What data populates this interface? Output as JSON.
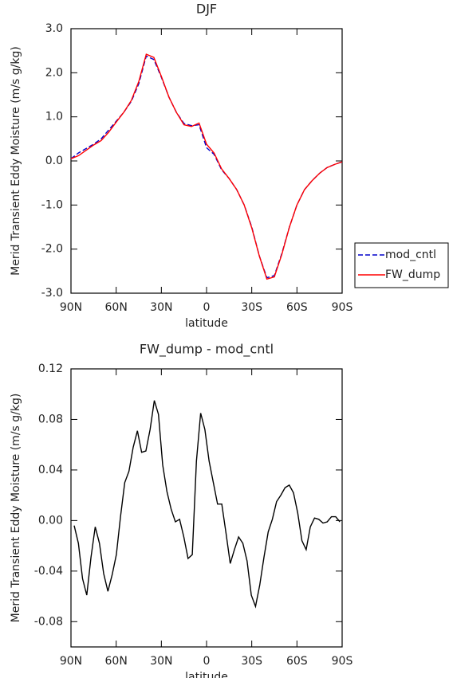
{
  "chart_data": [
    {
      "type": "line",
      "title": "DJF",
      "xlabel": "latitude",
      "ylabel": "Merid Transient Eddy Moisture (m/s g/kg)",
      "x": [
        90,
        85,
        80,
        75,
        70,
        65,
        60,
        55,
        50,
        45,
        40,
        35,
        30,
        25,
        20,
        15,
        10,
        5,
        0,
        -5,
        -10,
        -15,
        -20,
        -25,
        -30,
        -35,
        -40,
        -45,
        -50,
        -55,
        -60,
        -65,
        -70,
        -75,
        -80,
        -85,
        -90
      ],
      "series": [
        {
          "name": "mod_cntl",
          "color": "#0000cc",
          "linestyle": "dashed",
          "values": [
            0.05,
            0.18,
            0.28,
            0.38,
            0.5,
            0.7,
            0.9,
            1.1,
            1.35,
            1.75,
            2.38,
            2.3,
            1.9,
            1.45,
            1.1,
            0.85,
            0.8,
            0.82,
            0.3,
            0.15,
            -0.2,
            -0.4,
            -0.65,
            -1.0,
            -1.5,
            -2.15,
            -2.65,
            -2.6,
            -2.1,
            -1.5,
            -1.0,
            -0.65,
            -0.45,
            -0.28,
            -0.15,
            -0.08,
            -0.02
          ]
        },
        {
          "name": "FW_dump",
          "color": "#ff0000",
          "linestyle": "solid",
          "values": [
            0.05,
            0.12,
            0.24,
            0.36,
            0.46,
            0.65,
            0.88,
            1.1,
            1.37,
            1.8,
            2.42,
            2.35,
            1.92,
            1.45,
            1.1,
            0.82,
            0.78,
            0.86,
            0.38,
            0.18,
            -0.18,
            -0.4,
            -0.65,
            -1.0,
            -1.52,
            -2.15,
            -2.68,
            -2.63,
            -2.12,
            -1.5,
            -1.0,
            -0.65,
            -0.45,
            -0.28,
            -0.15,
            -0.08,
            -0.02
          ]
        }
      ],
      "xlim": [
        90,
        -90
      ],
      "xticks": [
        {
          "value": 90,
          "label": "90N"
        },
        {
          "value": 60,
          "label": "60N"
        },
        {
          "value": 30,
          "label": "30N"
        },
        0,
        {
          "value": -30,
          "label": "30S"
        },
        {
          "value": -60,
          "label": "60S"
        },
        {
          "value": -90,
          "label": "90S"
        }
      ],
      "ylim": [
        -3,
        3
      ],
      "yticks": [
        {
          "value": 3,
          "label": "3.0"
        },
        {
          "value": 2,
          "label": "2.0"
        },
        {
          "value": 1,
          "label": "1.0"
        },
        {
          "value": 0,
          "label": "0.0"
        },
        {
          "value": -1,
          "label": "-1.0"
        },
        {
          "value": -2,
          "label": "-2.0"
        },
        {
          "value": -3,
          "label": "-3.0"
        }
      ],
      "legend": "right"
    },
    {
      "type": "line",
      "title": "FW_dump - mod_cntl",
      "xlabel": "latitude",
      "ylabel": "Merid Transient Eddy Moisture (m/s g/kg)",
      "x": [
        87.9,
        85.1,
        82.3,
        79.5,
        76.7,
        73.9,
        71.1,
        68.3,
        65.5,
        62.7,
        59.9,
        57.1,
        54.3,
        51.5,
        48.7,
        45.9,
        43.1,
        40.3,
        37.5,
        34.7,
        31.9,
        29.1,
        26.3,
        23.5,
        20.7,
        17.9,
        15.1,
        12.3,
        9.5,
        6.7,
        3.9,
        1.1,
        -1.7,
        -4.5,
        -7.3,
        -10.1,
        -12.9,
        -15.7,
        -18.5,
        -21.3,
        -24.1,
        -26.9,
        -29.7,
        -32.5,
        -35.3,
        -38.1,
        -40.9,
        -43.7,
        -46.5,
        -49.3,
        -52.1,
        -54.9,
        -57.7,
        -60.5,
        -63.3,
        -66.1,
        -68.9,
        -71.7,
        -74.5,
        -77.3,
        -80.1,
        -82.9,
        -85.7,
        -88.5
      ],
      "series": [
        {
          "color": "#000000",
          "linestyle": "solid",
          "values": [
            -0.004,
            -0.018,
            -0.046,
            -0.059,
            -0.029,
            -0.005,
            -0.018,
            -0.042,
            -0.056,
            -0.043,
            -0.027,
            0.003,
            0.03,
            0.039,
            0.058,
            0.071,
            0.054,
            0.055,
            0.072,
            0.095,
            0.084,
            0.044,
            0.023,
            0.009,
            -0.001,
            0.001,
            -0.013,
            -0.03,
            -0.027,
            0.047,
            0.085,
            0.072,
            0.047,
            0.03,
            0.013,
            0.013,
            -0.01,
            -0.034,
            -0.023,
            -0.013,
            -0.018,
            -0.032,
            -0.059,
            -0.068,
            -0.051,
            -0.029,
            -0.009,
            0.001,
            0.015,
            0.02,
            0.026,
            0.028,
            0.022,
            0.006,
            -0.016,
            -0.023,
            -0.005,
            0.002,
            0.001,
            -0.002,
            -0.001,
            0.003,
            0.003,
            -0.001
          ]
        }
      ],
      "xlim": [
        90,
        -90
      ],
      "xticks": [
        {
          "value": 90,
          "label": "90N"
        },
        {
          "value": 60,
          "label": "60N"
        },
        {
          "value": 30,
          "label": "30N"
        },
        0,
        {
          "value": -30,
          "label": "30S"
        },
        {
          "value": -60,
          "label": "60S"
        },
        {
          "value": -90,
          "label": "90S"
        }
      ],
      "ylim": [
        -0.1,
        0.12
      ],
      "yticks": [
        0.12,
        0.08,
        0.04,
        {
          "value": 0,
          "label": "0.00"
        },
        -0.04,
        -0.08
      ]
    }
  ]
}
